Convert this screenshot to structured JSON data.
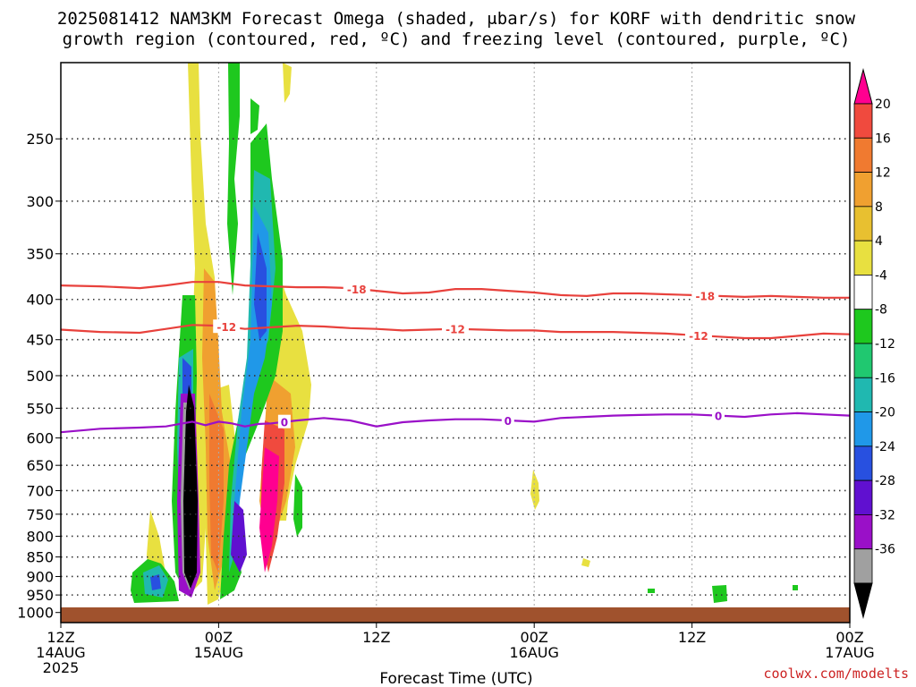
{
  "title_lines": [
    "2025081412 NAM3KM Forecast Omega (shaded, μbar/s) for KORF with dendritic snow",
    "growth region (contoured, red, ºC) and freezing level (contoured, purple, ºC)"
  ],
  "credit": "coolwx.com/modelts",
  "colors": {
    "temp_contour": "#e8413c",
    "freezing_contour": "#9a10c8",
    "ground": "#a0522d",
    "credit": "#cc2222"
  },
  "chart_data": {
    "type": "heatmap",
    "xlabel": "Forecast Time (UTC)",
    "ylabel": "",
    "y_scale": "log-pressure",
    "ylim_hPa": [
      1030,
      200
    ],
    "xlim_hours": [
      0,
      60
    ],
    "grid": true,
    "y_ticks": [
      250,
      300,
      350,
      400,
      450,
      500,
      550,
      600,
      650,
      700,
      750,
      800,
      850,
      900,
      950,
      1000
    ],
    "x_ticks": [
      {
        "hour": 0,
        "labels": [
          "12Z",
          "14AUG",
          "2025"
        ]
      },
      {
        "hour": 12,
        "labels": [
          "00Z",
          "15AUG"
        ]
      },
      {
        "hour": 24,
        "labels": [
          "12Z"
        ]
      },
      {
        "hour": 36,
        "labels": [
          "00Z",
          "16AUG"
        ]
      },
      {
        "hour": 48,
        "labels": [
          "12Z"
        ]
      },
      {
        "hour": 60,
        "labels": [
          "00Z",
          "17AUG"
        ]
      }
    ],
    "colorbar": {
      "levels": [
        20,
        16,
        12,
        8,
        4,
        -4,
        -8,
        -12,
        -16,
        -20,
        -24,
        -28,
        -32,
        -36
      ],
      "colors": [
        "#ff0090",
        "#f04a3e",
        "#f07a30",
        "#f0a030",
        "#e8c030",
        "#e8e040",
        "#ffffff",
        "#1ec81e",
        "#20c870",
        "#20b8b0",
        "#2098e8",
        "#2850e0",
        "#6010d0",
        "#9a10c8",
        "#a0a0a0",
        "#000000"
      ]
    },
    "contours": [
      {
        "name": "-18",
        "color": "red",
        "label_hours": [
          22.5,
          49
        ],
        "points": [
          [
            0,
            384
          ],
          [
            3,
            385
          ],
          [
            6,
            387
          ],
          [
            8,
            384
          ],
          [
            10,
            380
          ],
          [
            12,
            380
          ],
          [
            14,
            384
          ],
          [
            16,
            385
          ],
          [
            18,
            386
          ],
          [
            20,
            386
          ],
          [
            22,
            387
          ],
          [
            24,
            390
          ],
          [
            26,
            393
          ],
          [
            28,
            392
          ],
          [
            30,
            388
          ],
          [
            32,
            388
          ],
          [
            34,
            390
          ],
          [
            36,
            392
          ],
          [
            38,
            395
          ],
          [
            40,
            396
          ],
          [
            42,
            393
          ],
          [
            44,
            393
          ],
          [
            46,
            394
          ],
          [
            48,
            395
          ],
          [
            50,
            396
          ],
          [
            52,
            397
          ],
          [
            54,
            396
          ],
          [
            56,
            397
          ],
          [
            58,
            398
          ],
          [
            60,
            398
          ]
        ]
      },
      {
        "name": "-12",
        "color": "red",
        "label_hours": [
          12.6,
          30,
          48.5
        ],
        "points": [
          [
            0,
            437
          ],
          [
            3,
            440
          ],
          [
            6,
            441
          ],
          [
            8,
            436
          ],
          [
            10,
            431
          ],
          [
            12,
            432
          ],
          [
            14,
            436
          ],
          [
            16,
            434
          ],
          [
            18,
            432
          ],
          [
            20,
            433
          ],
          [
            22,
            435
          ],
          [
            24,
            436
          ],
          [
            26,
            438
          ],
          [
            28,
            437
          ],
          [
            30,
            436
          ],
          [
            32,
            437
          ],
          [
            34,
            438
          ],
          [
            36,
            438
          ],
          [
            38,
            440
          ],
          [
            40,
            440
          ],
          [
            42,
            440
          ],
          [
            44,
            441
          ],
          [
            46,
            442
          ],
          [
            48,
            444
          ],
          [
            50,
            446
          ],
          [
            52,
            448
          ],
          [
            54,
            448
          ],
          [
            56,
            445
          ],
          [
            58,
            442
          ],
          [
            60,
            443
          ]
        ]
      },
      {
        "name": "0",
        "color": "purple",
        "label_hours": [
          17,
          34,
          50
        ],
        "points": [
          [
            0,
            590
          ],
          [
            3,
            584
          ],
          [
            6,
            582
          ],
          [
            8,
            580
          ],
          [
            10,
            572
          ],
          [
            11,
            578
          ],
          [
            12,
            572
          ],
          [
            13,
            575
          ],
          [
            14,
            580
          ],
          [
            15,
            576
          ],
          [
            16,
            575
          ],
          [
            18,
            570
          ],
          [
            20,
            566
          ],
          [
            22,
            570
          ],
          [
            24,
            580
          ],
          [
            26,
            573
          ],
          [
            28,
            570
          ],
          [
            30,
            568
          ],
          [
            32,
            568
          ],
          [
            34,
            570
          ],
          [
            36,
            572
          ],
          [
            38,
            566
          ],
          [
            40,
            564
          ],
          [
            42,
            562
          ],
          [
            44,
            561
          ],
          [
            46,
            560
          ],
          [
            48,
            560
          ],
          [
            50,
            562
          ],
          [
            52,
            564
          ],
          [
            54,
            560
          ],
          [
            56,
            558
          ],
          [
            58,
            560
          ],
          [
            60,
            562
          ]
        ]
      }
    ]
  }
}
